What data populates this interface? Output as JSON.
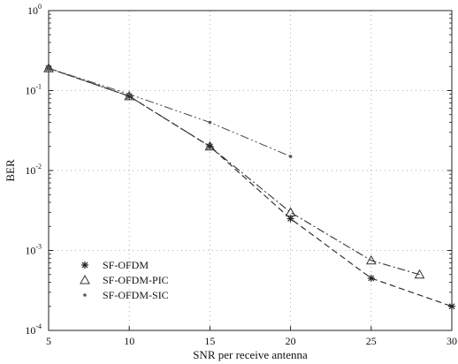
{
  "chart_data": {
    "type": "line",
    "xlabel": "SNR per receive antenna",
    "ylabel": "BER",
    "xlim": [
      5,
      30
    ],
    "ylim": [
      0.0001,
      1
    ],
    "yscale": "log",
    "grid": "dotted",
    "legend_position": "bottom-left",
    "x_ticks": [
      "5",
      "10",
      "15",
      "20",
      "25",
      "30"
    ],
    "y_ticks": [
      {
        "base": "10",
        "exp": "-4",
        "value": 0.0001
      },
      {
        "base": "10",
        "exp": "-3",
        "value": 0.001
      },
      {
        "base": "10",
        "exp": "-2",
        "value": 0.01
      },
      {
        "base": "10",
        "exp": "-1",
        "value": 0.1
      },
      {
        "base": "10",
        "exp": "0",
        "value": 1
      }
    ],
    "series": [
      {
        "name": "SF-OFDM",
        "marker": "star",
        "dash": "7 4",
        "color": "#222222",
        "x": [
          5,
          10,
          15,
          20,
          25,
          30
        ],
        "y": [
          0.19,
          0.085,
          0.02,
          0.0025,
          0.00045,
          0.0002
        ]
      },
      {
        "name": "SF-OFDM-PIC",
        "marker": "triangle",
        "dash": "9 3 2 3",
        "color": "#333333",
        "x": [
          5,
          10,
          15,
          20,
          25,
          28
        ],
        "y": [
          0.19,
          0.085,
          0.02,
          0.003,
          0.00075,
          0.0005
        ]
      },
      {
        "name": "SF-OFDM-SIC",
        "marker": "dot",
        "dash": "10 3 2 3 2 3",
        "color": "#555555",
        "x": [
          5,
          10,
          15,
          20
        ],
        "y": [
          0.19,
          0.09,
          0.04,
          0.015
        ]
      }
    ]
  }
}
